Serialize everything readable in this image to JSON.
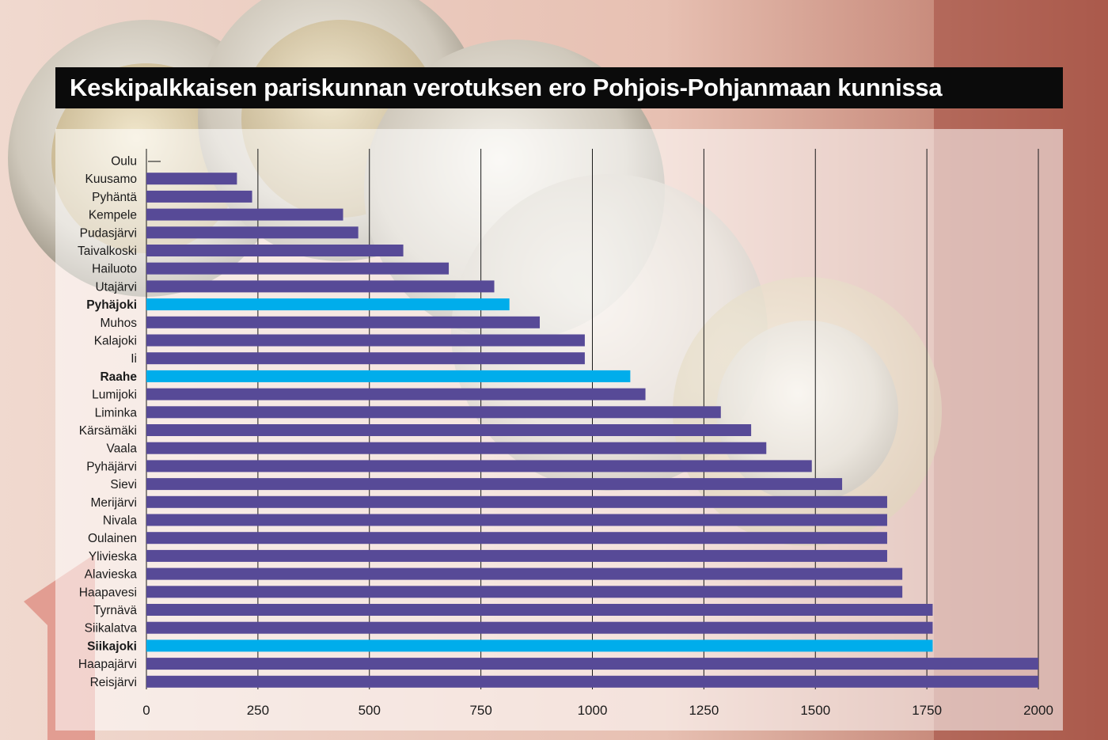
{
  "title": "Keskipalkkaisen pariskunnan verotuksen ero Pohjois-Pohjanmaan kunnissa",
  "colors": {
    "bar": "#574a97",
    "highlight": "#00adeb",
    "title_bg": "#0b0b0b",
    "title_text": "#ffffff"
  },
  "chart_data": {
    "type": "bar",
    "orientation": "horizontal",
    "title": "Keskipalkkaisen pariskunnan verotuksen ero Pohjois-Pohjanmaan kunnissa",
    "xlabel": "",
    "ylabel": "",
    "xlim": [
      0,
      2000
    ],
    "xticks": [
      "0",
      "250",
      "500",
      "750",
      "1000",
      "1250",
      "1500",
      "1750",
      "2000"
    ],
    "grid": true,
    "categories": [
      "Oulu",
      "Kuusamo",
      "Pyhäntä",
      "Kempele",
      "Pudasjärvi",
      "Taivalkoski",
      "Hailuoto",
      "Utajärvi",
      "Pyhäjoki",
      "Muhos",
      "Kalajoki",
      "Ii",
      "Raahe",
      "Lumijoki",
      "Liminka",
      "Kärsämäki",
      "Vaala",
      "Pyhäjärvi",
      "Sievi",
      "Merijärvi",
      "Nivala",
      "Oulainen",
      "Ylivieska",
      "Alavieska",
      "Haapavesi",
      "Tyrnävä",
      "Siikalatva",
      "Siikajoki",
      "Haapajärvi",
      "Reisjärvi"
    ],
    "values": [
      0,
      203,
      237,
      441,
      475,
      576,
      678,
      780,
      814,
      882,
      983,
      983,
      1085,
      1119,
      1288,
      1356,
      1390,
      1492,
      1560,
      1661,
      1661,
      1661,
      1661,
      1695,
      1695,
      1763,
      1763,
      1763,
      2000,
      2000
    ],
    "highlighted": [
      "Pyhäjoki",
      "Raahe",
      "Siikajoki"
    ],
    "zero_marker": "—"
  }
}
